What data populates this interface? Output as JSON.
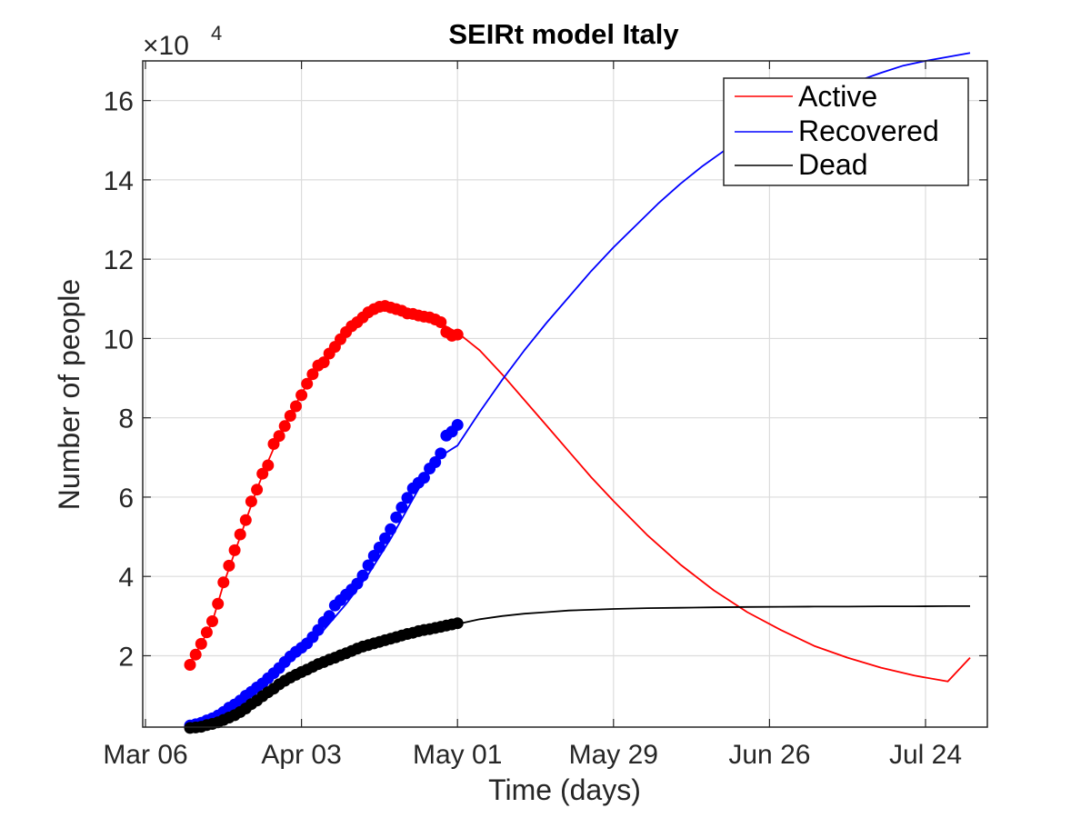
{
  "chart_data": {
    "type": "line",
    "title": "SEIRt model Italy",
    "xlabel": "Time (days)",
    "ylabel": "Number of people",
    "y_exponent_base": "×10",
    "y_exponent_power": "4",
    "x_ticks": [
      {
        "day": 0,
        "label": "Mar 06"
      },
      {
        "day": 28,
        "label": "Apr 03"
      },
      {
        "day": 56,
        "label": "May 01"
      },
      {
        "day": 84,
        "label": "May 29"
      },
      {
        "day": 112,
        "label": "Jun 26"
      },
      {
        "day": 140,
        "label": "Jul 24"
      }
    ],
    "y_ticks": [
      {
        "value": 2,
        "label": "2"
      },
      {
        "value": 4,
        "label": "4"
      },
      {
        "value": 6,
        "label": "6"
      },
      {
        "value": 8,
        "label": "8"
      },
      {
        "value": 10,
        "label": "10"
      },
      {
        "value": 12,
        "label": "12"
      },
      {
        "value": 14,
        "label": "14"
      },
      {
        "value": 16,
        "label": "16"
      }
    ],
    "xlim_days": [
      0,
      150
    ],
    "ylim": [
      0.2,
      17
    ],
    "grid": true,
    "legend_position": "top-right",
    "series": [
      {
        "name": "Active",
        "color": "#ff0000",
        "observed_x_days": [
          8,
          9,
          10,
          11,
          12,
          13,
          14,
          15,
          16,
          17,
          18,
          19,
          20,
          21,
          22,
          23,
          24,
          25,
          26,
          27,
          28,
          29,
          30,
          31,
          32,
          33,
          34,
          35,
          36,
          37,
          38,
          39,
          40,
          41,
          42,
          43,
          44,
          45,
          46,
          47,
          48,
          49,
          50,
          51,
          52,
          53,
          54,
          55,
          56
        ],
        "observed_y": [
          1.77,
          2.03,
          2.3,
          2.59,
          2.87,
          3.31,
          3.85,
          4.27,
          4.66,
          5.06,
          5.42,
          5.89,
          6.19,
          6.59,
          6.8,
          7.34,
          7.54,
          7.79,
          8.05,
          8.29,
          8.57,
          8.86,
          9.1,
          9.32,
          9.4,
          9.62,
          9.79,
          9.98,
          10.16,
          10.31,
          10.41,
          10.53,
          10.66,
          10.74,
          10.8,
          10.82,
          10.78,
          10.74,
          10.7,
          10.63,
          10.62,
          10.58,
          10.55,
          10.53,
          10.48,
          10.41,
          10.16,
          10.07,
          10.1
        ],
        "fit_x_days": [
          8,
          10,
          12,
          14,
          16,
          18,
          20,
          22,
          24,
          26,
          28,
          30,
          32,
          34,
          36,
          38,
          40,
          42,
          44,
          46,
          48,
          50,
          52,
          54,
          56,
          60,
          64,
          68,
          72,
          76,
          80,
          84,
          90,
          96,
          102,
          108,
          114,
          120,
          126,
          132,
          138,
          144,
          148
        ],
        "fit_y": [
          1.82,
          2.3,
          2.85,
          3.8,
          4.6,
          5.4,
          6.2,
          6.9,
          7.55,
          8.1,
          8.6,
          9.1,
          9.45,
          9.8,
          10.15,
          10.4,
          10.6,
          10.75,
          10.8,
          10.75,
          10.65,
          10.55,
          10.45,
          10.3,
          10.15,
          9.7,
          9.1,
          8.45,
          7.8,
          7.15,
          6.5,
          5.9,
          5.05,
          4.3,
          3.65,
          3.1,
          2.65,
          2.25,
          1.95,
          1.7,
          1.5,
          1.35,
          1.95
        ]
      },
      {
        "name": "Recovered",
        "color": "#0000ff",
        "observed_x_days": [
          8,
          9,
          10,
          11,
          12,
          13,
          14,
          15,
          16,
          17,
          18,
          19,
          20,
          21,
          22,
          23,
          24,
          25,
          26,
          27,
          28,
          29,
          30,
          31,
          32,
          33,
          34,
          35,
          36,
          37,
          38,
          39,
          40,
          41,
          42,
          43,
          44,
          45,
          46,
          47,
          48,
          49,
          50,
          51,
          52,
          53,
          54,
          55,
          56
        ],
        "observed_y": [
          0.24,
          0.27,
          0.31,
          0.37,
          0.42,
          0.49,
          0.58,
          0.69,
          0.77,
          0.87,
          0.99,
          1.09,
          1.2,
          1.3,
          1.43,
          1.56,
          1.69,
          1.84,
          1.98,
          2.1,
          2.2,
          2.31,
          2.47,
          2.65,
          2.85,
          3.0,
          3.27,
          3.4,
          3.54,
          3.67,
          3.82,
          4.02,
          4.28,
          4.52,
          4.73,
          4.96,
          5.19,
          5.49,
          5.74,
          5.98,
          6.22,
          6.36,
          6.49,
          6.72,
          6.88,
          7.1,
          7.55,
          7.65,
          7.82
        ],
        "fit_x_days": [
          8,
          12,
          16,
          20,
          24,
          28,
          32,
          36,
          40,
          44,
          48,
          52,
          56,
          60,
          64,
          68,
          72,
          76,
          80,
          84,
          88,
          92,
          96,
          100,
          104,
          108,
          112,
          116,
          120,
          124,
          128,
          132,
          136,
          140,
          144,
          148
        ],
        "fit_y": [
          0.2,
          0.4,
          0.75,
          1.15,
          1.6,
          2.1,
          2.65,
          3.3,
          4.05,
          4.95,
          5.95,
          6.95,
          7.3,
          8.15,
          8.95,
          9.7,
          10.4,
          11.05,
          11.7,
          12.3,
          12.85,
          13.4,
          13.9,
          14.35,
          14.75,
          15.1,
          15.45,
          15.75,
          16.05,
          16.3,
          16.5,
          16.7,
          16.88,
          17.0,
          17.1,
          17.2
        ]
      },
      {
        "name": "Dead",
        "color": "#000000",
        "observed_x_days": [
          8,
          9,
          10,
          11,
          12,
          13,
          14,
          15,
          16,
          17,
          18,
          19,
          20,
          21,
          22,
          23,
          24,
          25,
          26,
          27,
          28,
          29,
          30,
          31,
          32,
          33,
          34,
          35,
          36,
          37,
          38,
          39,
          40,
          41,
          42,
          43,
          44,
          45,
          46,
          47,
          48,
          49,
          50,
          51,
          52,
          53,
          54,
          55,
          56
        ],
        "observed_y": [
          0.18,
          0.19,
          0.21,
          0.25,
          0.28,
          0.32,
          0.38,
          0.44,
          0.5,
          0.58,
          0.67,
          0.78,
          0.87,
          0.98,
          1.08,
          1.17,
          1.28,
          1.37,
          1.45,
          1.52,
          1.59,
          1.65,
          1.72,
          1.79,
          1.84,
          1.9,
          1.95,
          2.01,
          2.06,
          2.12,
          2.18,
          2.23,
          2.27,
          2.31,
          2.35,
          2.39,
          2.43,
          2.47,
          2.51,
          2.55,
          2.58,
          2.62,
          2.65,
          2.67,
          2.7,
          2.73,
          2.76,
          2.79,
          2.82
        ],
        "fit_x_days": [
          8,
          12,
          16,
          20,
          24,
          28,
          32,
          36,
          40,
          44,
          48,
          52,
          56,
          60,
          64,
          68,
          72,
          76,
          80,
          84,
          90,
          96,
          102,
          108,
          114,
          120,
          126,
          132,
          138,
          144,
          148
        ],
        "fit_y": [
          0.18,
          0.3,
          0.5,
          0.85,
          1.2,
          1.55,
          1.82,
          2.05,
          2.25,
          2.42,
          2.57,
          2.7,
          2.8,
          2.92,
          3.0,
          3.06,
          3.1,
          3.14,
          3.16,
          3.18,
          3.2,
          3.21,
          3.22,
          3.23,
          3.235,
          3.24,
          3.24,
          3.245,
          3.245,
          3.25,
          3.25
        ]
      }
    ]
  }
}
